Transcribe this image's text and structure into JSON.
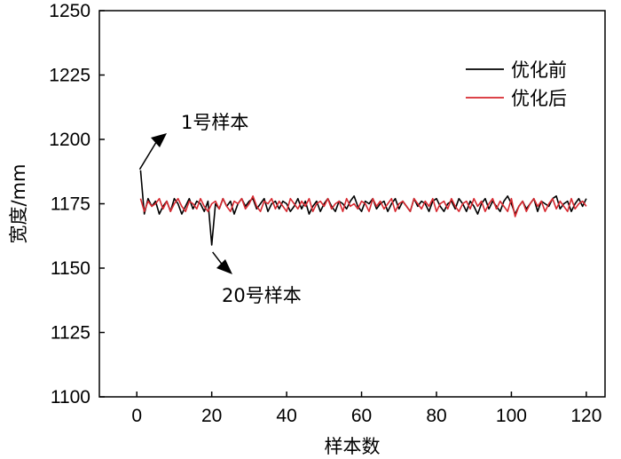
{
  "chart_data": {
    "type": "line",
    "title": "",
    "xlabel": "样本数",
    "ylabel": "宽度/mm",
    "xlim": [
      -10,
      125
    ],
    "ylim": [
      1100,
      1250
    ],
    "x_ticks": [
      0,
      20,
      40,
      60,
      80,
      100,
      120
    ],
    "y_ticks": [
      1100,
      1125,
      1150,
      1175,
      1200,
      1225,
      1250
    ],
    "grid": false,
    "legend_position": "top-right",
    "series": [
      {
        "name": "优化前",
        "color": "#000000",
        "x": [
          1,
          2,
          3,
          4,
          5,
          6,
          7,
          8,
          9,
          10,
          11,
          12,
          13,
          14,
          15,
          16,
          17,
          18,
          19,
          20,
          21,
          22,
          23,
          24,
          25,
          26,
          27,
          28,
          29,
          30,
          31,
          32,
          33,
          34,
          35,
          36,
          37,
          38,
          39,
          40,
          41,
          42,
          43,
          44,
          45,
          46,
          47,
          48,
          49,
          50,
          51,
          52,
          53,
          54,
          55,
          56,
          57,
          58,
          59,
          60,
          61,
          62,
          63,
          64,
          65,
          66,
          67,
          68,
          69,
          70,
          71,
          72,
          73,
          74,
          75,
          76,
          77,
          78,
          79,
          80,
          81,
          82,
          83,
          84,
          85,
          86,
          87,
          88,
          89,
          90,
          91,
          92,
          93,
          94,
          95,
          96,
          97,
          98,
          99,
          100,
          101,
          102,
          103,
          104,
          105,
          106,
          107,
          108,
          109,
          110,
          111,
          112,
          113,
          114,
          115,
          116,
          117,
          118,
          119,
          120
        ],
        "values": [
          1188,
          1171,
          1177,
          1174,
          1176,
          1171,
          1174,
          1176,
          1172,
          1177,
          1175,
          1171,
          1174,
          1177,
          1173,
          1176,
          1175,
          1172,
          1176,
          1159,
          1175,
          1173,
          1177,
          1174,
          1176,
          1171,
          1175,
          1177,
          1174,
          1176,
          1177,
          1173,
          1175,
          1177,
          1172,
          1175,
          1176,
          1173,
          1176,
          1175,
          1172,
          1174,
          1177,
          1173,
          1176,
          1171,
          1174,
          1176,
          1172,
          1175,
          1177,
          1174,
          1172,
          1176,
          1175,
          1173,
          1176,
          1178,
          1174,
          1172,
          1176,
          1175,
          1177,
          1173,
          1175,
          1176,
          1172,
          1175,
          1177,
          1173,
          1176,
          1174,
          1172,
          1177,
          1174,
          1176,
          1175,
          1172,
          1176,
          1177,
          1174,
          1172,
          1175,
          1176,
          1173,
          1177,
          1175,
          1172,
          1176,
          1174,
          1171,
          1175,
          1177,
          1173,
          1176,
          1174,
          1172,
          1176,
          1178,
          1175,
          1171,
          1174,
          1176,
          1173,
          1175,
          1177,
          1172,
          1176,
          1175,
          1174,
          1177,
          1178,
          1173,
          1175,
          1176,
          1172,
          1175,
          1177,
          1174,
          1177
        ]
      },
      {
        "name": "优化后",
        "color": "#d7282f",
        "x": [
          1,
          2,
          3,
          4,
          5,
          6,
          7,
          8,
          9,
          10,
          11,
          12,
          13,
          14,
          15,
          16,
          17,
          18,
          19,
          20,
          21,
          22,
          23,
          24,
          25,
          26,
          27,
          28,
          29,
          30,
          31,
          32,
          33,
          34,
          35,
          36,
          37,
          38,
          39,
          40,
          41,
          42,
          43,
          44,
          45,
          46,
          47,
          48,
          49,
          50,
          51,
          52,
          53,
          54,
          55,
          56,
          57,
          58,
          59,
          60,
          61,
          62,
          63,
          64,
          65,
          66,
          67,
          68,
          69,
          70,
          71,
          72,
          73,
          74,
          75,
          76,
          77,
          78,
          79,
          80,
          81,
          82,
          83,
          84,
          85,
          86,
          87,
          88,
          89,
          90,
          91,
          92,
          93,
          94,
          95,
          96,
          97,
          98,
          99,
          100,
          101,
          102,
          103,
          104,
          105,
          106,
          107,
          108,
          109,
          110,
          111,
          112,
          113,
          114,
          115,
          116,
          117,
          118,
          119,
          120
        ],
        "values": [
          1177,
          1172,
          1176,
          1174,
          1175,
          1177,
          1173,
          1176,
          1172,
          1175,
          1177,
          1174,
          1172,
          1176,
          1175,
          1173,
          1177,
          1174,
          1172,
          1175,
          1176,
          1173,
          1177,
          1174,
          1172,
          1176,
          1175,
          1177,
          1173,
          1175,
          1178,
          1174,
          1172,
          1176,
          1175,
          1177,
          1173,
          1176,
          1174,
          1172,
          1177,
          1175,
          1173,
          1176,
          1174,
          1177,
          1172,
          1175,
          1176,
          1174,
          1177,
          1173,
          1175,
          1176,
          1172,
          1177,
          1174,
          1175,
          1173,
          1176,
          1175,
          1172,
          1177,
          1174,
          1176,
          1173,
          1175,
          1177,
          1172,
          1175,
          1176,
          1174,
          1172,
          1177,
          1175,
          1173,
          1176,
          1174,
          1177,
          1172,
          1175,
          1176,
          1173,
          1177,
          1174,
          1172,
          1175,
          1176,
          1173,
          1177,
          1174,
          1176,
          1172,
          1175,
          1177,
          1173,
          1176,
          1174,
          1172,
          1177,
          1170,
          1174,
          1176,
          1172,
          1175,
          1177,
          1174,
          1176,
          1172,
          1175,
          1177,
          1173,
          1176,
          1174,
          1172,
          1177,
          1173,
          1175,
          1176,
          1174
        ]
      }
    ],
    "annotations": [
      {
        "text": "1号样本",
        "x": 1,
        "y": 1188
      },
      {
        "text": "20号样本",
        "x": 20,
        "y": 1159
      }
    ]
  }
}
